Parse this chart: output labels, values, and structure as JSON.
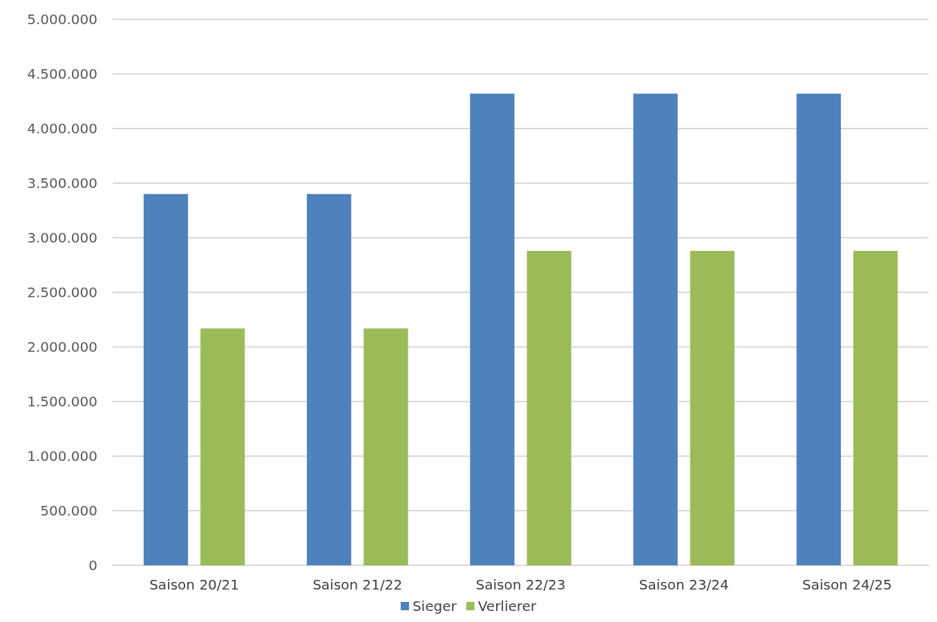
{
  "chart_data": {
    "type": "bar",
    "categories": [
      "Saison 20/21",
      "Saison 21/22",
      "Saison 22/23",
      "Saison 23/24",
      "Saison 24/25"
    ],
    "series": [
      {
        "name": "Sieger",
        "color": "#4f81bd",
        "values": [
          3400000,
          3400000,
          4320000,
          4320000,
          4320000
        ]
      },
      {
        "name": "Verlierer",
        "color": "#9bbb59",
        "values": [
          2170000,
          2170000,
          2880000,
          2880000,
          2880000
        ]
      }
    ],
    "ylim": [
      0,
      5000000
    ],
    "yticks": [
      {
        "value": 0,
        "label": "0"
      },
      {
        "value": 500000,
        "label": "500.000"
      },
      {
        "value": 1000000,
        "label": "1.000.000"
      },
      {
        "value": 1500000,
        "label": "1.500.000"
      },
      {
        "value": 2000000,
        "label": "2.000.000"
      },
      {
        "value": 2500000,
        "label": "2.500.000"
      },
      {
        "value": 3000000,
        "label": "3.000.000"
      },
      {
        "value": 3500000,
        "label": "3.500.000"
      },
      {
        "value": 4000000,
        "label": "4.000.000"
      },
      {
        "value": 4500000,
        "label": "4.500.000"
      },
      {
        "value": 5000000,
        "label": "5.000.000"
      }
    ],
    "grid": "y",
    "legend": "bottom"
  }
}
